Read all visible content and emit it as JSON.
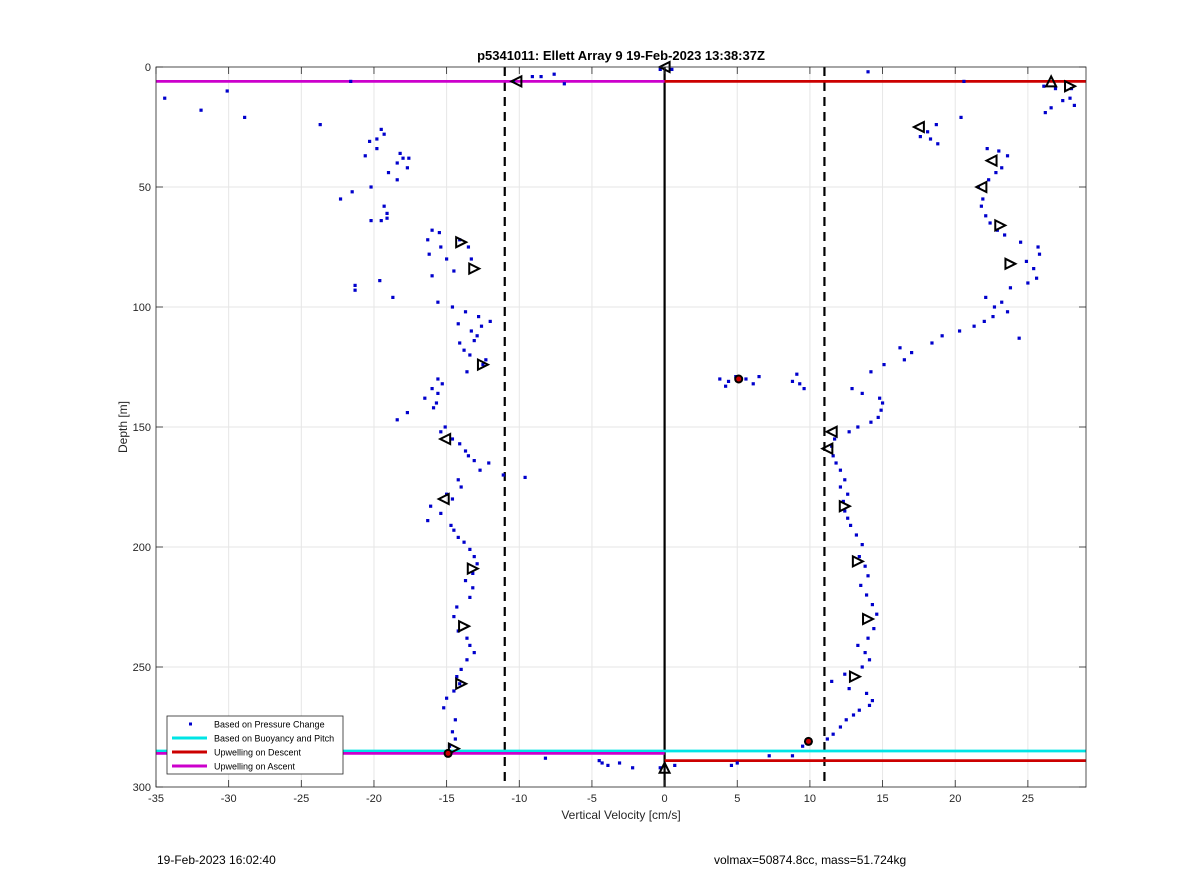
{
  "chart_data": {
    "type": "scatter",
    "title": "p5341011: Ellett Array 9 19-Feb-2023 13:38:37Z",
    "xlabel": "Vertical Velocity [cm/s]",
    "ylabel": "Depth [m]",
    "xlim": [
      -35,
      29
    ],
    "ylim": [
      0,
      300
    ],
    "y_reversed": true,
    "grid": true,
    "legend_position": "bottom-left",
    "x_ticks": [
      -35,
      -30,
      -25,
      -20,
      -15,
      -10,
      -5,
      0,
      5,
      10,
      15,
      20,
      25
    ],
    "y_ticks": [
      0,
      50,
      100,
      150,
      200,
      250,
      300
    ],
    "x_tick_labels": [
      "-35",
      "-30",
      "-25",
      "-20",
      "-15",
      "-10",
      "-5",
      "0",
      "5",
      "10",
      "15",
      "20",
      "25"
    ],
    "y_tick_labels": [
      "0",
      "50",
      "100",
      "150",
      "200",
      "250",
      "300"
    ],
    "legend": [
      {
        "label": "Based on Pressure Change",
        "color": "#0000cc",
        "style": "dots"
      },
      {
        "label": "Based on Buoyancy and Pitch",
        "color": "#00e5e5",
        "style": "line"
      },
      {
        "label": "Upwelling on Descent",
        "color": "#cc0000",
        "style": "line"
      },
      {
        "label": "Upwelling on Ascent",
        "color": "#cc00cc",
        "style": "line"
      }
    ],
    "dashed_vertical_lines_x": [
      -11,
      11
    ],
    "zero_line_x": 0,
    "horizontal_lines": [
      {
        "series": "Upwelling on Ascent",
        "y": 6,
        "x_from": -35,
        "x_to": 0,
        "color": "#cc00cc"
      },
      {
        "series": "Upwelling on Descent",
        "y": 6,
        "x_from": 0,
        "x_to": 29,
        "color": "#cc0000"
      },
      {
        "series": "Based on Buoyancy and Pitch",
        "y": 285,
        "x_from": -35,
        "x_to": 29,
        "color": "#00e5e5"
      },
      {
        "series": "Upwelling on Ascent",
        "y": 286,
        "x_from": -35,
        "x_to": 0,
        "color": "#cc00cc"
      },
      {
        "series": "Upwelling on Descent",
        "y": 289,
        "x_from": 0,
        "x_to": 29,
        "color": "#cc0000"
      }
    ],
    "pressure_points": [
      [
        -34.4,
        13
      ],
      [
        -31.9,
        18
      ],
      [
        -30.1,
        10
      ],
      [
        -28.9,
        21
      ],
      [
        -23.7,
        24
      ],
      [
        -21.6,
        6
      ],
      [
        -19.5,
        26
      ],
      [
        -19.3,
        28
      ],
      [
        -19.8,
        30
      ],
      [
        -20.3,
        31
      ],
      [
        -19.8,
        34
      ],
      [
        -20.6,
        37
      ],
      [
        -18.2,
        36
      ],
      [
        -18.0,
        38
      ],
      [
        -18.4,
        40
      ],
      [
        -17.6,
        38
      ],
      [
        -17.7,
        42
      ],
      [
        -19.0,
        44
      ],
      [
        -18.4,
        47
      ],
      [
        -20.2,
        50
      ],
      [
        -21.5,
        52
      ],
      [
        -22.3,
        55
      ],
      [
        -19.3,
        58
      ],
      [
        -19.1,
        61
      ],
      [
        -19.1,
        63
      ],
      [
        -19.5,
        64
      ],
      [
        -20.2,
        64
      ],
      [
        -16.0,
        68
      ],
      [
        -15.5,
        69
      ],
      [
        -16.3,
        72
      ],
      [
        -15.4,
        75
      ],
      [
        -16.2,
        78
      ],
      [
        -15.0,
        80
      ],
      [
        -16.0,
        87
      ],
      [
        -14.1,
        72
      ],
      [
        -13.5,
        75
      ],
      [
        -13.3,
        80
      ],
      [
        -14.5,
        85
      ],
      [
        -19.6,
        89
      ],
      [
        -21.3,
        91
      ],
      [
        -21.3,
        93
      ],
      [
        -18.7,
        96
      ],
      [
        -15.6,
        98
      ],
      [
        -14.6,
        100
      ],
      [
        -13.7,
        102
      ],
      [
        -12.8,
        104
      ],
      [
        -12.0,
        106
      ],
      [
        -12.6,
        108
      ],
      [
        -13.3,
        110
      ],
      [
        -14.2,
        107
      ],
      [
        -12.9,
        112
      ],
      [
        -13.1,
        114
      ],
      [
        -14.1,
        115
      ],
      [
        -13.8,
        118
      ],
      [
        -13.4,
        120
      ],
      [
        -12.3,
        122
      ],
      [
        -12.5,
        124
      ],
      [
        -13.6,
        127
      ],
      [
        -15.6,
        130
      ],
      [
        -15.3,
        132
      ],
      [
        -16.0,
        134
      ],
      [
        -15.6,
        136
      ],
      [
        -16.5,
        138
      ],
      [
        -15.7,
        140
      ],
      [
        -15.9,
        142
      ],
      [
        -17.7,
        144
      ],
      [
        -18.4,
        147
      ],
      [
        -15.1,
        150
      ],
      [
        -15.4,
        152
      ],
      [
        -14.6,
        155
      ],
      [
        -14.1,
        157
      ],
      [
        -13.7,
        160
      ],
      [
        -13.5,
        162
      ],
      [
        -13.1,
        164
      ],
      [
        -12.1,
        165
      ],
      [
        -12.7,
        168
      ],
      [
        -11.1,
        170
      ],
      [
        -9.6,
        171
      ],
      [
        -14.2,
        172
      ],
      [
        -14.0,
        175
      ],
      [
        -15.0,
        178
      ],
      [
        -14.6,
        180
      ],
      [
        -16.1,
        183
      ],
      [
        -15.4,
        186
      ],
      [
        -16.3,
        189
      ],
      [
        -14.7,
        191
      ],
      [
        -14.5,
        193
      ],
      [
        -14.2,
        196
      ],
      [
        -13.8,
        198
      ],
      [
        -13.4,
        201
      ],
      [
        -13.1,
        204
      ],
      [
        -12.9,
        207
      ],
      [
        -13.2,
        211
      ],
      [
        -13.7,
        214
      ],
      [
        -13.2,
        217
      ],
      [
        -13.4,
        221
      ],
      [
        -14.3,
        225
      ],
      [
        -14.5,
        229
      ],
      [
        -14.2,
        235
      ],
      [
        -13.6,
        238
      ],
      [
        -13.4,
        241
      ],
      [
        -13.1,
        244
      ],
      [
        -13.6,
        247
      ],
      [
        -14.0,
        251
      ],
      [
        -14.3,
        254
      ],
      [
        -14.1,
        257
      ],
      [
        -14.5,
        260
      ],
      [
        -15.0,
        263
      ],
      [
        -15.2,
        267
      ],
      [
        -14.4,
        272
      ],
      [
        -14.6,
        277
      ],
      [
        -14.4,
        280
      ],
      [
        -14.8,
        283
      ],
      [
        -14.9,
        287
      ],
      [
        -10.4,
        6
      ],
      [
        -9.1,
        4
      ],
      [
        -8.5,
        4
      ],
      [
        -7.6,
        3
      ],
      [
        -6.9,
        7
      ],
      [
        -0.3,
        1
      ],
      [
        0.5,
        1
      ],
      [
        -8.2,
        288
      ],
      [
        -4.5,
        289
      ],
      [
        -4.3,
        290
      ],
      [
        -3.9,
        291
      ],
      [
        -3.1,
        290
      ],
      [
        -2.2,
        292
      ],
      [
        -0.3,
        292
      ],
      [
        0.7,
        291
      ],
      [
        4.6,
        291
      ],
      [
        5.0,
        290
      ],
      [
        3.8,
        130
      ],
      [
        4.4,
        131
      ],
      [
        4.2,
        133
      ],
      [
        4.9,
        129
      ],
      [
        5.6,
        130
      ],
      [
        6.1,
        132
      ],
      [
        6.5,
        129
      ],
      [
        8.8,
        131
      ],
      [
        9.1,
        128
      ],
      [
        9.3,
        132
      ],
      [
        9.6,
        134
      ],
      [
        7.2,
        287
      ],
      [
        8.8,
        287
      ],
      [
        9.5,
        283
      ],
      [
        11.2,
        280
      ],
      [
        11.6,
        278
      ],
      [
        12.1,
        275
      ],
      [
        12.5,
        272
      ],
      [
        13.0,
        270
      ],
      [
        13.4,
        268
      ],
      [
        14.1,
        266
      ],
      [
        14.3,
        264
      ],
      [
        13.9,
        261
      ],
      [
        12.7,
        259
      ],
      [
        11.5,
        256
      ],
      [
        12.4,
        253
      ],
      [
        13.6,
        250
      ],
      [
        14.1,
        247
      ],
      [
        13.8,
        244
      ],
      [
        13.3,
        241
      ],
      [
        14.0,
        238
      ],
      [
        14.4,
        234
      ],
      [
        14.6,
        228
      ],
      [
        14.3,
        224
      ],
      [
        13.9,
        220
      ],
      [
        13.5,
        216
      ],
      [
        14.0,
        212
      ],
      [
        13.8,
        208
      ],
      [
        13.4,
        204
      ],
      [
        13.6,
        199
      ],
      [
        13.2,
        195
      ],
      [
        12.8,
        191
      ],
      [
        12.6,
        188
      ],
      [
        12.4,
        185
      ],
      [
        12.3,
        181
      ],
      [
        12.6,
        178
      ],
      [
        12.1,
        175
      ],
      [
        12.4,
        172
      ],
      [
        12.1,
        168
      ],
      [
        11.8,
        165
      ],
      [
        11.6,
        162
      ],
      [
        11.5,
        158
      ],
      [
        11.7,
        155
      ],
      [
        12.7,
        152
      ],
      [
        13.3,
        150
      ],
      [
        14.2,
        148
      ],
      [
        14.7,
        146
      ],
      [
        14.9,
        143
      ],
      [
        15.0,
        140
      ],
      [
        14.8,
        138
      ],
      [
        13.6,
        136
      ],
      [
        12.9,
        134
      ],
      [
        14.2,
        127
      ],
      [
        15.1,
        124
      ],
      [
        16.5,
        122
      ],
      [
        17.0,
        119
      ],
      [
        16.2,
        117
      ],
      [
        18.4,
        115
      ],
      [
        19.1,
        112
      ],
      [
        20.3,
        110
      ],
      [
        21.3,
        108
      ],
      [
        22.0,
        106
      ],
      [
        22.6,
        104
      ],
      [
        23.6,
        102
      ],
      [
        22.7,
        100
      ],
      [
        23.2,
        98
      ],
      [
        22.1,
        96
      ],
      [
        23.8,
        92
      ],
      [
        25.0,
        90
      ],
      [
        25.6,
        88
      ],
      [
        25.4,
        84
      ],
      [
        24.9,
        81
      ],
      [
        25.8,
        78
      ],
      [
        25.7,
        75
      ],
      [
        24.5,
        73
      ],
      [
        23.4,
        70
      ],
      [
        22.9,
        68
      ],
      [
        22.4,
        65
      ],
      [
        22.1,
        62
      ],
      [
        21.8,
        58
      ],
      [
        21.9,
        55
      ],
      [
        21.6,
        50
      ],
      [
        22.3,
        47
      ],
      [
        22.8,
        44
      ],
      [
        23.2,
        42
      ],
      [
        23.6,
        37
      ],
      [
        23.0,
        35
      ],
      [
        22.2,
        34
      ],
      [
        20.4,
        21
      ],
      [
        18.7,
        24
      ],
      [
        18.1,
        27
      ],
      [
        18.3,
        30
      ],
      [
        18.8,
        32
      ],
      [
        17.6,
        29
      ],
      [
        14.0,
        2
      ],
      [
        20.6,
        6
      ],
      [
        26.1,
        8
      ],
      [
        26.9,
        9
      ],
      [
        27.4,
        14
      ],
      [
        27.9,
        13
      ],
      [
        28.2,
        16
      ],
      [
        26.6,
        17
      ],
      [
        26.2,
        19
      ],
      [
        28.0,
        9
      ],
      [
        24.4,
        113
      ]
    ],
    "triangle_markers": [
      {
        "x": 0,
        "y": 0,
        "dir": "left"
      },
      {
        "x": -10.2,
        "y": 6,
        "dir": "left"
      },
      {
        "x": -14.0,
        "y": 73,
        "dir": "right"
      },
      {
        "x": -13.1,
        "y": 84,
        "dir": "right"
      },
      {
        "x": -12.5,
        "y": 124,
        "dir": "right"
      },
      {
        "x": -15.1,
        "y": 155,
        "dir": "left"
      },
      {
        "x": -15.2,
        "y": 180,
        "dir": "left"
      },
      {
        "x": -13.2,
        "y": 209,
        "dir": "right"
      },
      {
        "x": -13.8,
        "y": 233,
        "dir": "right"
      },
      {
        "x": -14.0,
        "y": 257,
        "dir": "right"
      },
      {
        "x": -14.5,
        "y": 284,
        "dir": "right"
      },
      {
        "x": 26.6,
        "y": 6,
        "dir": "up"
      },
      {
        "x": 27.9,
        "y": 8,
        "dir": "right"
      },
      {
        "x": 17.5,
        "y": 25,
        "dir": "left"
      },
      {
        "x": 22.5,
        "y": 39,
        "dir": "left"
      },
      {
        "x": 21.8,
        "y": 50,
        "dir": "left"
      },
      {
        "x": 23.1,
        "y": 66,
        "dir": "right"
      },
      {
        "x": 23.8,
        "y": 82,
        "dir": "right"
      },
      {
        "x": 11.5,
        "y": 152,
        "dir": "left"
      },
      {
        "x": 11.2,
        "y": 159,
        "dir": "left"
      },
      {
        "x": 12.4,
        "y": 183,
        "dir": "right"
      },
      {
        "x": 13.3,
        "y": 206,
        "dir": "right"
      },
      {
        "x": 14.0,
        "y": 230,
        "dir": "right"
      },
      {
        "x": 13.1,
        "y": 254,
        "dir": "right"
      },
      {
        "x": 0,
        "y": 292,
        "dir": "up"
      }
    ],
    "red_star_markers": [
      {
        "x": 5.1,
        "y": 130
      },
      {
        "x": 9.9,
        "y": 281
      },
      {
        "x": -14.9,
        "y": 286
      }
    ]
  },
  "footer": {
    "left": "19-Feb-2023 16:02:40",
    "right": "volmax=50874.8cc, mass=51.724kg"
  }
}
